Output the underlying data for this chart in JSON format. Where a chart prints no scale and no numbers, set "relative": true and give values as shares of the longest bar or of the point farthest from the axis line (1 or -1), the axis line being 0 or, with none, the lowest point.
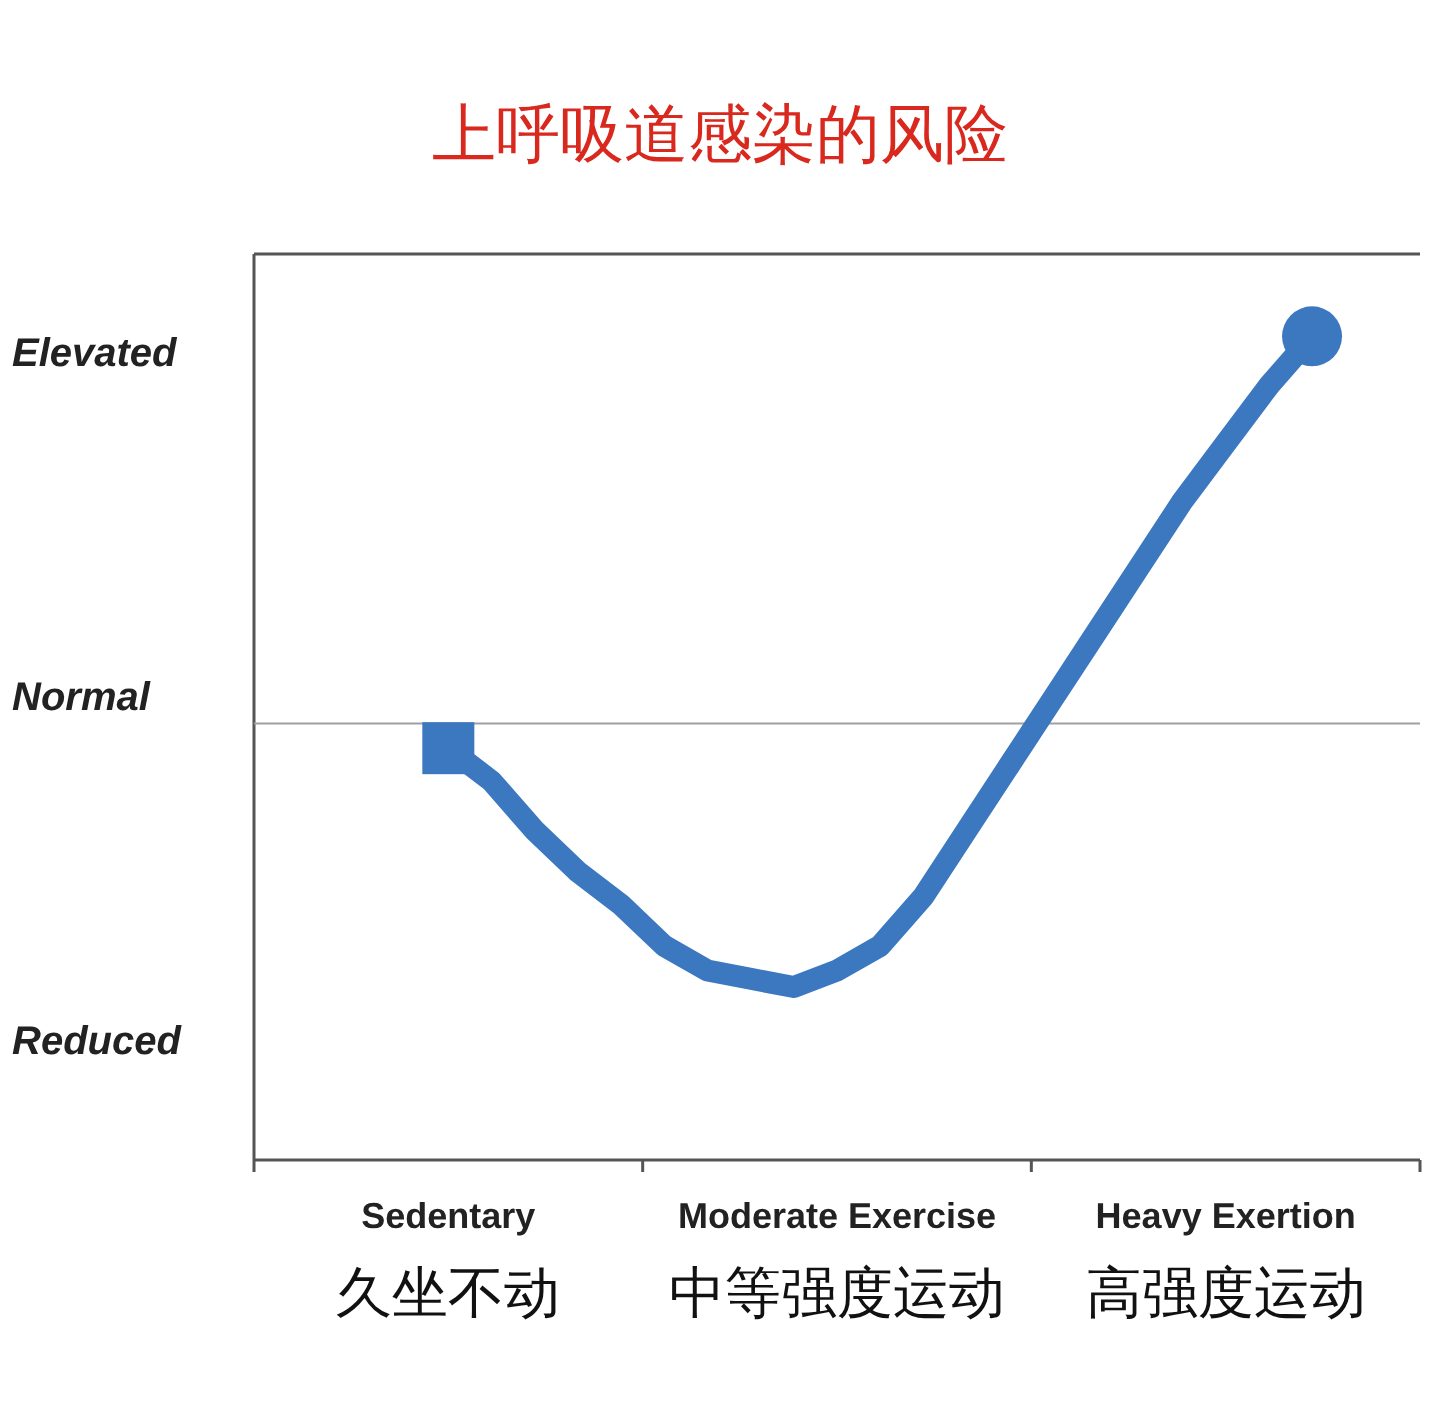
{
  "chart_data": {
    "type": "line",
    "title": "上呼吸道感染的风险",
    "relative": true,
    "categories": [
      null,
      null,
      null,
      null,
      "Sedentary\n久坐不动",
      null,
      null,
      null,
      null,
      null,
      null,
      null,
      null,
      "Moderate Exercise\n中等强度运动",
      null,
      null,
      null,
      null,
      null,
      null,
      null,
      null,
      "Heavy Exertion\n高强度运动",
      null,
      null,
      null,
      null
    ],
    "annotations": [
      "Elevated",
      "Normal",
      "Reduced"
    ],
    "ref_lines": [
      {
        "axis": "y",
        "value": 0.53,
        "color": "#a0a0a0"
      }
    ],
    "series": [
      {
        "color": "#3b78c0",
        "values": [
          null,
          null,
          null,
          null,
          0.5,
          0.46,
          0.4,
          0.35,
          0.31,
          0.26,
          0.23,
          0.22,
          0.21,
          0.23,
          0.26,
          0.32,
          0.4,
          0.48,
          0.56,
          0.64,
          0.72,
          0.8,
          0.87,
          0.94,
          1,
          null,
          null
        ]
      },
      {
        "type": "scatter",
        "marker": "square",
        "color": "#3b78c0",
        "values": [
          null,
          null,
          null,
          null,
          0.5,
          null,
          null,
          null,
          null,
          null,
          null,
          null,
          null,
          null,
          null,
          null,
          null,
          null,
          null,
          null,
          null,
          null,
          null,
          null,
          null,
          null,
          null
        ]
      },
      {
        "type": "scatter",
        "marker": "circle",
        "color": "#3b78c0",
        "values": [
          null,
          null,
          null,
          null,
          null,
          null,
          null,
          null,
          null,
          null,
          null,
          null,
          null,
          null,
          null,
          null,
          null,
          null,
          null,
          null,
          null,
          null,
          null,
          null,
          1,
          null,
          null
        ]
      }
    ]
  }
}
